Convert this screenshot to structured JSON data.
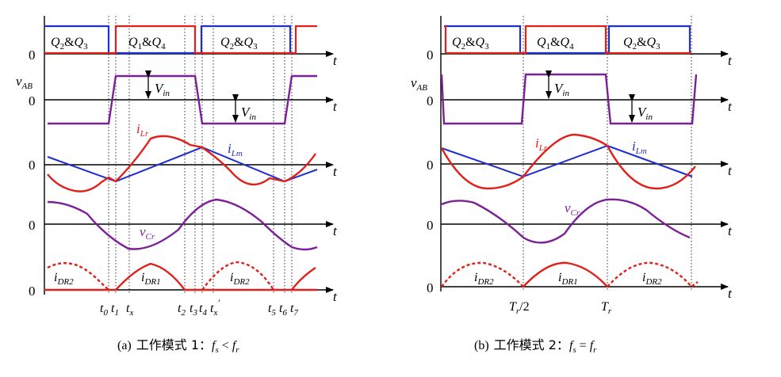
{
  "colors": {
    "red": "#e0211b",
    "blue": "#1f2fd0",
    "purple": "#7b2096",
    "axis": "#000000",
    "dotted": "#333333"
  },
  "common": {
    "zero": "0",
    "t": "t",
    "vab_base": "v",
    "vab_sub": "AB",
    "vin_base": "V",
    "vin_sub": "in",
    "iLr_base": "i",
    "iLr_sub": "Lr",
    "iLm_base": "i",
    "iLm_sub": "Lm",
    "vCr_base": "v",
    "vCr_sub": "Cr",
    "iDR1_base": "i",
    "iDR1_sub": "DR1",
    "iDR2_base": "i",
    "iDR2_sub": "DR2",
    "q23": {
      "a": "Q",
      "a_sub": "2",
      "amp": "&",
      "b": "Q",
      "b_sub": "3"
    },
    "q14": {
      "a": "Q",
      "a_sub": "1",
      "amp": "&",
      "b": "Q",
      "b_sub": "4"
    }
  },
  "panel_a": {
    "caption": {
      "prefix": "(a)",
      "text": "工作模式 1：",
      "fs": "f",
      "fs_sub": "s",
      "op": " < ",
      "fr": "f",
      "fr_sub": "r"
    },
    "time_labels": [
      {
        "base": "t",
        "sub": "0"
      },
      {
        "base": "t",
        "sub": "1"
      },
      {
        "base": "t",
        "sub": "x"
      },
      {
        "base": "t",
        "sub": "2"
      },
      {
        "base": "t",
        "sub": "3"
      },
      {
        "base": "t",
        "sub": "4"
      },
      {
        "base": "t",
        "sub": "x",
        "sup": "′"
      },
      {
        "base": "t",
        "sub": "5"
      },
      {
        "base": "t",
        "sub": "6"
      },
      {
        "base": "t",
        "sub": "7"
      }
    ]
  },
  "panel_b": {
    "caption": {
      "prefix": "(b)",
      "text": "工作模式 2：",
      "fs": "f",
      "fs_sub": "s",
      "op": " = ",
      "fr": "f",
      "fr_sub": "r"
    },
    "time_labels": [
      {
        "base": "T",
        "sub": "r",
        "suffix": "/2"
      },
      {
        "base": "T",
        "sub": "r"
      }
    ]
  }
}
